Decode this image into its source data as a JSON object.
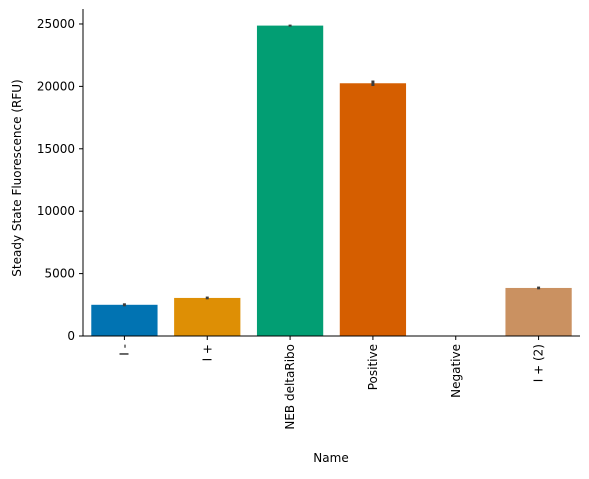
{
  "chart_data": {
    "type": "bar",
    "title": "",
    "xlabel": "Name",
    "ylabel": "Steady State Fluorescence (RFU)",
    "ylim": [
      0,
      26200
    ],
    "yticks": [
      0,
      5000,
      10000,
      15000,
      20000,
      25000
    ],
    "ytick_labels": [
      "0",
      "5000",
      "10000",
      "15000",
      "20000",
      "25000"
    ],
    "grid": false,
    "categories": [
      "I -",
      "I +",
      "NEB deltaRibo",
      "Positive",
      "Negative",
      "I + (2)"
    ],
    "values": [
      2500,
      3050,
      24870,
      20250,
      0,
      3850
    ],
    "errors": [
      120,
      110,
      80,
      220,
      0,
      110
    ],
    "colors": [
      "#0173b2",
      "#de8f05",
      "#029e73",
      "#d55e00",
      "#cc78bc",
      "#ca9161"
    ]
  }
}
